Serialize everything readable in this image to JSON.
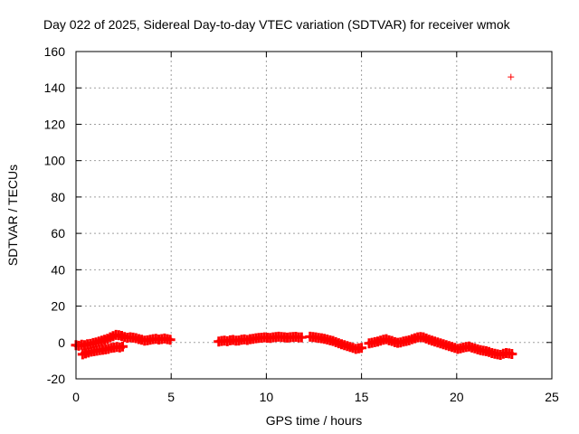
{
  "chart_data": {
    "type": "scatter",
    "title": "Day 022 of 2025, Sidereal Day-to-day VTEC variation (SDTVAR) for receiver wmok",
    "xlabel": "GPS time / hours",
    "ylabel": "SDTVAR / TECUs",
    "xlim": [
      0,
      25
    ],
    "ylim": [
      -20,
      160
    ],
    "xticks": [
      0,
      5,
      10,
      15,
      20,
      25
    ],
    "yticks": [
      -20,
      0,
      20,
      40,
      60,
      80,
      100,
      120,
      140,
      160
    ],
    "grid": true,
    "marker": "plus",
    "color": "#ff0000",
    "series": [
      {
        "name": "SDTVAR",
        "points": [
          [
            0.0,
            -1.5
          ],
          [
            0.15,
            -1.8
          ],
          [
            0.3,
            -1.2
          ],
          [
            0.45,
            -1.5
          ],
          [
            0.6,
            -1.0
          ],
          [
            0.75,
            -0.8
          ],
          [
            0.9,
            -0.3
          ],
          [
            1.05,
            0.0
          ],
          [
            1.2,
            0.5
          ],
          [
            1.35,
            1.0
          ],
          [
            1.5,
            1.5
          ],
          [
            1.65,
            2.0
          ],
          [
            1.8,
            2.8
          ],
          [
            1.95,
            3.5
          ],
          [
            2.1,
            4.2
          ],
          [
            2.25,
            4.0
          ],
          [
            2.4,
            3.6
          ],
          [
            2.55,
            3.0
          ],
          [
            2.7,
            2.6
          ],
          [
            2.85,
            2.9
          ],
          [
            3.0,
            2.7
          ],
          [
            3.15,
            2.4
          ],
          [
            3.3,
            1.9
          ],
          [
            3.45,
            1.5
          ],
          [
            3.6,
            1.0
          ],
          [
            3.75,
            1.2
          ],
          [
            3.9,
            1.5
          ],
          [
            4.05,
            1.8
          ],
          [
            4.2,
            2.0
          ],
          [
            4.35,
            1.6
          ],
          [
            4.5,
            1.9
          ],
          [
            4.65,
            2.2
          ],
          [
            4.8,
            1.8
          ],
          [
            4.95,
            1.5
          ],
          [
            0.35,
            -6.5
          ],
          [
            0.5,
            -6.0
          ],
          [
            0.65,
            -5.5
          ],
          [
            0.8,
            -5.0
          ],
          [
            0.95,
            -4.8
          ],
          [
            1.1,
            -4.5
          ],
          [
            1.25,
            -4.2
          ],
          [
            1.4,
            -4.0
          ],
          [
            1.55,
            -3.8
          ],
          [
            1.7,
            -3.5
          ],
          [
            1.85,
            -3.0
          ],
          [
            2.0,
            -2.8
          ],
          [
            2.15,
            -2.5
          ],
          [
            2.3,
            -2.7
          ],
          [
            2.45,
            -2.2
          ],
          [
            7.5,
            0.5
          ],
          [
            7.65,
            0.8
          ],
          [
            7.8,
            1.0
          ],
          [
            7.95,
            0.7
          ],
          [
            8.1,
            1.2
          ],
          [
            8.25,
            1.4
          ],
          [
            8.4,
            1.0
          ],
          [
            8.55,
            1.1
          ],
          [
            8.7,
            1.5
          ],
          [
            8.85,
            1.7
          ],
          [
            9.0,
            1.4
          ],
          [
            9.15,
            1.8
          ],
          [
            9.3,
            2.0
          ],
          [
            9.45,
            2.3
          ],
          [
            9.6,
            2.5
          ],
          [
            9.75,
            2.6
          ],
          [
            9.9,
            2.8
          ],
          [
            10.05,
            2.6
          ],
          [
            10.2,
            2.5
          ],
          [
            10.35,
            2.8
          ],
          [
            10.5,
            3.0
          ],
          [
            10.65,
            3.2
          ],
          [
            10.8,
            3.0
          ],
          [
            10.95,
            2.9
          ],
          [
            11.1,
            2.7
          ],
          [
            11.25,
            2.9
          ],
          [
            11.4,
            3.0
          ],
          [
            11.55,
            3.1
          ],
          [
            11.7,
            2.8
          ],
          [
            11.85,
            2.8
          ],
          [
            12.3,
            3.2
          ],
          [
            12.45,
            3.0
          ],
          [
            12.6,
            2.8
          ],
          [
            12.75,
            2.5
          ],
          [
            12.9,
            2.3
          ],
          [
            13.05,
            2.0
          ],
          [
            13.2,
            1.6
          ],
          [
            13.35,
            1.2
          ],
          [
            13.5,
            0.8
          ],
          [
            13.65,
            0.2
          ],
          [
            13.8,
            -0.4
          ],
          [
            13.95,
            -1.0
          ],
          [
            14.1,
            -1.5
          ],
          [
            14.25,
            -2.0
          ],
          [
            14.4,
            -2.5
          ],
          [
            14.55,
            -3.0
          ],
          [
            14.7,
            -3.5
          ],
          [
            14.85,
            -3.2
          ],
          [
            15.0,
            -3.0
          ],
          [
            15.4,
            -0.5
          ],
          [
            15.55,
            -0.2
          ],
          [
            15.7,
            0.2
          ],
          [
            15.85,
            0.5
          ],
          [
            16.0,
            1.0
          ],
          [
            16.15,
            1.5
          ],
          [
            16.3,
            1.8
          ],
          [
            16.45,
            1.2
          ],
          [
            16.6,
            0.8
          ],
          [
            16.75,
            0.2
          ],
          [
            16.9,
            -0.2
          ],
          [
            17.05,
            0.0
          ],
          [
            17.2,
            0.5
          ],
          [
            17.35,
            0.8
          ],
          [
            17.5,
            1.2
          ],
          [
            17.65,
            1.8
          ],
          [
            17.8,
            2.3
          ],
          [
            17.95,
            2.8
          ],
          [
            18.1,
            3.0
          ],
          [
            18.25,
            2.8
          ],
          [
            18.4,
            2.2
          ],
          [
            18.55,
            1.5
          ],
          [
            18.7,
            1.0
          ],
          [
            18.85,
            0.5
          ],
          [
            19.0,
            0.0
          ],
          [
            19.15,
            -0.5
          ],
          [
            19.3,
            -1.0
          ],
          [
            19.45,
            -1.5
          ],
          [
            19.6,
            -2.0
          ],
          [
            19.75,
            -2.5
          ],
          [
            19.9,
            -3.0
          ],
          [
            20.05,
            -3.5
          ],
          [
            20.2,
            -3.2
          ],
          [
            20.35,
            -2.8
          ],
          [
            20.5,
            -2.5
          ],
          [
            20.65,
            -2.2
          ],
          [
            20.8,
            -2.8
          ],
          [
            20.95,
            -3.2
          ],
          [
            21.1,
            -3.8
          ],
          [
            21.25,
            -4.2
          ],
          [
            21.4,
            -4.5
          ],
          [
            21.55,
            -4.8
          ],
          [
            21.7,
            -5.2
          ],
          [
            21.85,
            -5.8
          ],
          [
            22.0,
            -6.2
          ],
          [
            22.15,
            -6.5
          ],
          [
            22.3,
            -6.8
          ],
          [
            22.45,
            -6.2
          ],
          [
            22.6,
            -5.8
          ],
          [
            22.75,
            -6.0
          ],
          [
            22.9,
            -6.3
          ],
          [
            22.85,
            146
          ]
        ]
      }
    ]
  }
}
